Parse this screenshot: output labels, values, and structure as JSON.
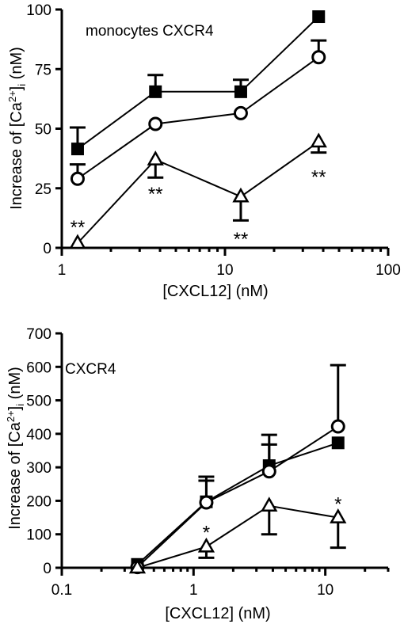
{
  "chart_data": [
    {
      "type": "scatter",
      "title": "monocytes CXCR4",
      "xlabel": "[CXCL12] (nM)",
      "ylabel": {
        "prefix": "Increase of [Ca",
        "sup": "2+",
        "mid": "]",
        "sub": "i",
        "suffix": " (nM)"
      },
      "xscale": "log",
      "xlim": [
        1,
        100
      ],
      "ylim": [
        0,
        100
      ],
      "xticks": [
        1,
        10,
        100
      ],
      "xtick_labels": [
        "1",
        "10",
        "100"
      ],
      "yticks": [
        0,
        25,
        50,
        75,
        100
      ],
      "ytick_labels": [
        "0",
        "25",
        "50",
        "75",
        "100"
      ],
      "grid": false,
      "series": [
        {
          "marker": "filled-square",
          "x": [
            1.25,
            3.75,
            12.5,
            37.5
          ],
          "y": [
            41.5,
            65.5,
            65.5,
            97
          ],
          "err_up": [
            9,
            7,
            5,
            0
          ],
          "err_down": [
            0,
            0,
            0,
            0
          ]
        },
        {
          "marker": "open-circle",
          "x": [
            1.25,
            3.75,
            12.5,
            37.5
          ],
          "y": [
            29,
            52,
            56.5,
            80
          ],
          "err_up": [
            6,
            0,
            0,
            7
          ],
          "err_down": [
            0,
            0,
            0,
            0
          ]
        },
        {
          "marker": "open-triangle",
          "x": [
            1.25,
            3.75,
            12.5,
            37.5
          ],
          "y": [
            2,
            37,
            21.5,
            44.5
          ],
          "err_up": [
            0,
            0,
            0,
            0
          ],
          "err_down": [
            0,
            7.5,
            10,
            4.5
          ]
        }
      ],
      "annotations": [
        {
          "text": "**",
          "x": 1.25,
          "y": 10
        },
        {
          "text": "**",
          "x": 3.75,
          "y": 24
        },
        {
          "text": "**",
          "x": 12.5,
          "y": 5
        },
        {
          "text": "**",
          "x": 37.5,
          "y": 31
        }
      ]
    },
    {
      "type": "scatter",
      "title": "CXCR4",
      "xlabel": "[CXCL12] (nM)",
      "ylabel": {
        "prefix": "Increase of [Ca",
        "sup": "2+",
        "mid": "]",
        "sub": "i",
        "suffix": " (nM)"
      },
      "xscale": "log",
      "xlim": [
        0.1,
        30
      ],
      "ylim": [
        0,
        700
      ],
      "xticks": [
        0.1,
        1,
        10
      ],
      "xtick_labels": [
        "0.1",
        "1",
        "10"
      ],
      "yticks": [
        0,
        100,
        200,
        300,
        400,
        500,
        600,
        700
      ],
      "ytick_labels": [
        "0",
        "100",
        "200",
        "300",
        "400",
        "500",
        "600",
        "700"
      ],
      "grid": false,
      "series": [
        {
          "marker": "filled-square",
          "x": [
            0.375,
            1.25,
            3.75,
            12.5
          ],
          "y": [
            10,
            197,
            305,
            373
          ],
          "err_up": [
            0,
            75,
            92,
            0
          ],
          "err_down": [
            0,
            0,
            0,
            0
          ]
        },
        {
          "marker": "open-circle",
          "x": [
            0.375,
            1.25,
            3.75,
            12.5
          ],
          "y": [
            2,
            195,
            288,
            422
          ],
          "err_up": [
            0,
            65,
            80,
            183
          ],
          "err_down": [
            0,
            0,
            0,
            0
          ]
        },
        {
          "marker": "open-triangle",
          "x": [
            0.375,
            1.25,
            3.75,
            12.5
          ],
          "y": [
            0,
            63,
            185,
            150
          ],
          "err_up": [
            0,
            0,
            0,
            0
          ],
          "err_down": [
            0,
            33,
            85,
            90
          ]
        }
      ],
      "annotations": [
        {
          "text": "*",
          "x": 1.25,
          "y": 115
        },
        {
          "text": "*",
          "x": 12.5,
          "y": 200
        }
      ]
    }
  ]
}
